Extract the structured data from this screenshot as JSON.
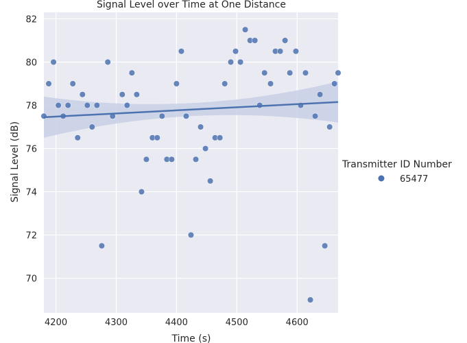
{
  "chart_data": {
    "type": "scatter",
    "title": "Signal Level over Time at One Distance",
    "xlabel": "Time (s)",
    "ylabel": "Signal Level (dB)",
    "xlim": [
      4180,
      4668
    ],
    "ylim": [
      68.4,
      82.3
    ],
    "x_ticks": [
      4200,
      4300,
      4400,
      4500,
      4600
    ],
    "y_ticks": [
      70,
      72,
      74,
      76,
      78,
      80,
      82
    ],
    "grid": true,
    "legend_title": "Transmitter ID Number",
    "legend_placement": "right",
    "colors": {
      "point": "#4c72b0",
      "line": "#4c72b0",
      "band": "#c8d0e6",
      "panel": "#eaeaf2",
      "grid": "#ffffff"
    },
    "series": [
      {
        "name": "65477",
        "x": [
          4180,
          4188,
          4196,
          4204,
          4212,
          4220,
          4228,
          4236,
          4244,
          4252,
          4260,
          4268,
          4276,
          4286,
          4294,
          4310,
          4318,
          4326,
          4334,
          4342,
          4350,
          4360,
          4368,
          4376,
          4384,
          4392,
          4400,
          4408,
          4416,
          4424,
          4432,
          4440,
          4448,
          4456,
          4464,
          4472,
          4480,
          4490,
          4498,
          4506,
          4514,
          4522,
          4530,
          4538,
          4546,
          4556,
          4564,
          4572,
          4580,
          4588,
          4598,
          4606,
          4614,
          4630,
          4638,
          4646,
          4654,
          4662,
          4668
        ],
        "y": [
          77.5,
          79,
          80,
          78,
          77.5,
          78,
          79,
          76.5,
          78.5,
          78,
          77,
          78,
          71.5,
          80,
          77.5,
          78.5,
          78,
          79.5,
          78.5,
          74,
          75.5,
          76.5,
          76.5,
          77.5,
          75.5,
          75.5,
          79,
          80.5,
          77.5,
          72,
          75.5,
          77,
          76,
          74.5,
          76.5,
          76.5,
          79,
          80,
          80.5,
          80,
          81.5,
          81,
          81,
          78,
          79.5,
          79,
          80.5,
          80.5,
          81,
          79.5,
          80.5,
          78,
          79.5,
          77.5,
          78.5,
          71.5,
          77,
          79,
          79.5
        ]
      }
    ],
    "extra_points": [
      {
        "x": 4622,
        "y": 69
      }
    ],
    "regression": {
      "x": [
        4180,
        4668
      ],
      "y": [
        77.45,
        78.15
      ],
      "band_halfwidth_edges": 0.95,
      "band_halfwidth_center": 0.3
    }
  }
}
